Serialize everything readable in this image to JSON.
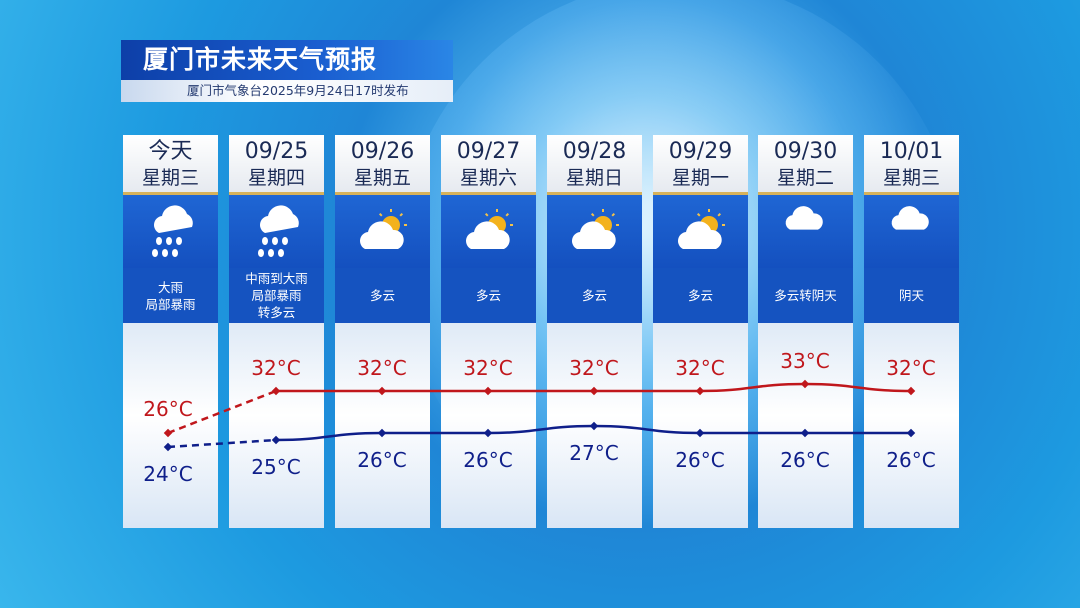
{
  "title": "厦门市未来天气预报",
  "subtitle": "厦门市气象台2025年9月24日17时发布",
  "colors": {
    "high": "#c0171c",
    "low": "#0f1f8a"
  },
  "days": [
    {
      "date": "今天",
      "weekday": "星期三",
      "icon": "heavy-rain-icon",
      "desc": [
        "大雨",
        "局部暴雨"
      ],
      "high": 26,
      "low": 24
    },
    {
      "date": "09/25",
      "weekday": "星期四",
      "icon": "heavy-rain-icon",
      "desc": [
        "中雨到大雨",
        "局部暴雨",
        "转多云"
      ],
      "high": 32,
      "low": 25
    },
    {
      "date": "09/26",
      "weekday": "星期五",
      "icon": "partly-cloudy-icon",
      "desc": [
        "多云"
      ],
      "high": 32,
      "low": 26
    },
    {
      "date": "09/27",
      "weekday": "星期六",
      "icon": "partly-cloudy-icon",
      "desc": [
        "多云"
      ],
      "high": 32,
      "low": 26
    },
    {
      "date": "09/28",
      "weekday": "星期日",
      "icon": "partly-cloudy-icon",
      "desc": [
        "多云"
      ],
      "high": 32,
      "low": 27
    },
    {
      "date": "09/29",
      "weekday": "星期一",
      "icon": "partly-cloudy-icon",
      "desc": [
        "多云"
      ],
      "high": 32,
      "low": 26
    },
    {
      "date": "09/30",
      "weekday": "星期二",
      "icon": "cloudy-icon",
      "desc": [
        "多云转阴天"
      ],
      "high": 33,
      "low": 26
    },
    {
      "date": "10/01",
      "weekday": "星期三",
      "icon": "cloudy-icon",
      "desc": [
        "阴天"
      ],
      "high": 32,
      "low": 26
    }
  ],
  "unit": "°C"
}
